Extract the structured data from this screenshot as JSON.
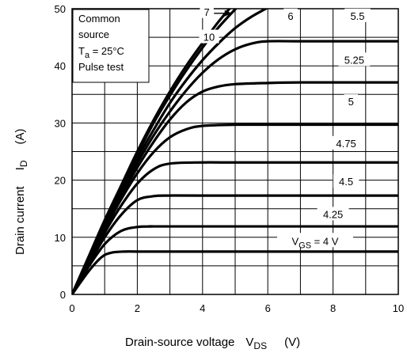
{
  "chart_data": {
    "type": "line",
    "xlabel": "Drain-source voltage",
    "xlabel_symbol": "V",
    "xlabel_sub": "DS",
    "xlabel_unit": "(V)",
    "ylabel": "Drain current",
    "ylabel_symbol": "I",
    "ylabel_sub": "D",
    "ylabel_unit": "(A)",
    "xlim": [
      0,
      10
    ],
    "ylim": [
      0,
      50
    ],
    "x_ticks": [
      "0",
      "2",
      "4",
      "6",
      "8",
      "10"
    ],
    "y_ticks": [
      "0",
      "10",
      "20",
      "30",
      "40",
      "50"
    ],
    "grid": true,
    "conditions": {
      "line1": "Common",
      "line2": "source",
      "line3_symbol": "T",
      "line3_sub": "a",
      "line3_rest": " = 25°C",
      "line4": "Pulse test"
    },
    "series": [
      {
        "name": "10",
        "x": [
          0,
          0.5,
          1,
          1.5,
          2,
          2.5,
          3,
          3.5,
          4,
          4.5,
          4.9
        ],
        "y": [
          0,
          6.5,
          13,
          19,
          25,
          30.5,
          35.5,
          40,
          44,
          47.8,
          50.5
        ]
      },
      {
        "name": "7",
        "x": [
          0,
          0.5,
          1,
          1.5,
          2,
          2.5,
          3,
          3.5,
          4,
          4.5,
          5.1
        ],
        "y": [
          0,
          6.4,
          12.8,
          18.7,
          24.5,
          30,
          34.8,
          39.2,
          43.2,
          46.8,
          50.5
        ]
      },
      {
        "name": "6",
        "x": [
          0,
          0.5,
          1,
          1.5,
          2,
          2.5,
          3,
          3.5,
          4,
          4.5,
          5,
          5.5,
          6.1
        ],
        "y": [
          0,
          6.3,
          12.5,
          18.3,
          23.8,
          28.8,
          33.5,
          37.5,
          41,
          44,
          46.6,
          48.6,
          50.5
        ]
      },
      {
        "name": "5.5",
        "x": [
          0,
          0.5,
          1,
          1.5,
          2,
          2.5,
          3,
          3.5,
          4,
          4.5,
          5,
          5.5,
          6,
          7,
          8,
          10
        ],
        "y": [
          0,
          6.2,
          12.2,
          17.8,
          23,
          27.8,
          32,
          35.7,
          38.8,
          41.2,
          42.9,
          43.9,
          44.3,
          44.3,
          44.3,
          44.3
        ]
      },
      {
        "name": "5.25",
        "x": [
          0,
          0.5,
          1,
          1.5,
          2,
          2.5,
          3,
          3.5,
          4,
          4.5,
          5,
          6,
          7,
          10
        ],
        "y": [
          0,
          6,
          11.8,
          17.2,
          22.2,
          26.7,
          30.6,
          33.6,
          35.5,
          36.4,
          36.8,
          37,
          37.1,
          37.1
        ]
      },
      {
        "name": "5",
        "x": [
          0,
          0.5,
          1,
          1.5,
          2,
          2.5,
          3,
          3.5,
          4,
          5,
          6,
          7,
          10
        ],
        "y": [
          0,
          5.8,
          11.4,
          16.6,
          21.2,
          24.9,
          27.5,
          28.9,
          29.5,
          29.7,
          29.7,
          29.7,
          29.7
        ]
      },
      {
        "name": "4.75",
        "x": [
          0,
          0.5,
          1,
          1.5,
          2,
          2.5,
          3,
          4,
          5,
          10
        ],
        "y": [
          0,
          5.5,
          10.8,
          15.5,
          19.4,
          21.9,
          22.9,
          23.1,
          23.1,
          23.1
        ]
      },
      {
        "name": "4.5",
        "x": [
          0,
          0.5,
          1,
          1.5,
          2,
          2.5,
          3,
          4,
          10
        ],
        "y": [
          0,
          5.2,
          10,
          13.9,
          16.5,
          17.2,
          17.3,
          17.3,
          17.3
        ]
      },
      {
        "name": "4.25",
        "x": [
          0,
          0.5,
          1,
          1.5,
          2,
          2.5,
          3,
          10
        ],
        "y": [
          0,
          4.8,
          8.8,
          11.1,
          11.8,
          11.9,
          11.9,
          11.9
        ]
      },
      {
        "name": "VGS = 4 V",
        "x": [
          0,
          0.5,
          0.9,
          1.2,
          1.6,
          2,
          3,
          10
        ],
        "y": [
          0,
          4,
          6.5,
          7.3,
          7.5,
          7.5,
          7.5,
          7.5
        ]
      }
    ],
    "curve_labels": [
      {
        "text": "10",
        "x": 4.2,
        "y": 44.8
      },
      {
        "text": "7",
        "x": 4.13,
        "y": 49.2
      },
      {
        "text": "6",
        "x": 6.7,
        "y": 48.5
      },
      {
        "text": "5.5",
        "x": 8.75,
        "y": 48.5
      },
      {
        "text": "5.25",
        "x": 8.65,
        "y": 40.8
      },
      {
        "text": "5",
        "x": 8.55,
        "y": 33.5
      },
      {
        "text": "4.75",
        "x": 8.4,
        "y": 26.2
      },
      {
        "text": "4.5",
        "x": 8.4,
        "y": 19.5
      },
      {
        "text": "4.25",
        "x": 8.0,
        "y": 13.8
      },
      {
        "text": "VGS = 4 V",
        "label_symbol": "V",
        "label_sub": "GS",
        "label_rest": " = 4 V",
        "x": 7.45,
        "y": 9.1
      }
    ]
  }
}
